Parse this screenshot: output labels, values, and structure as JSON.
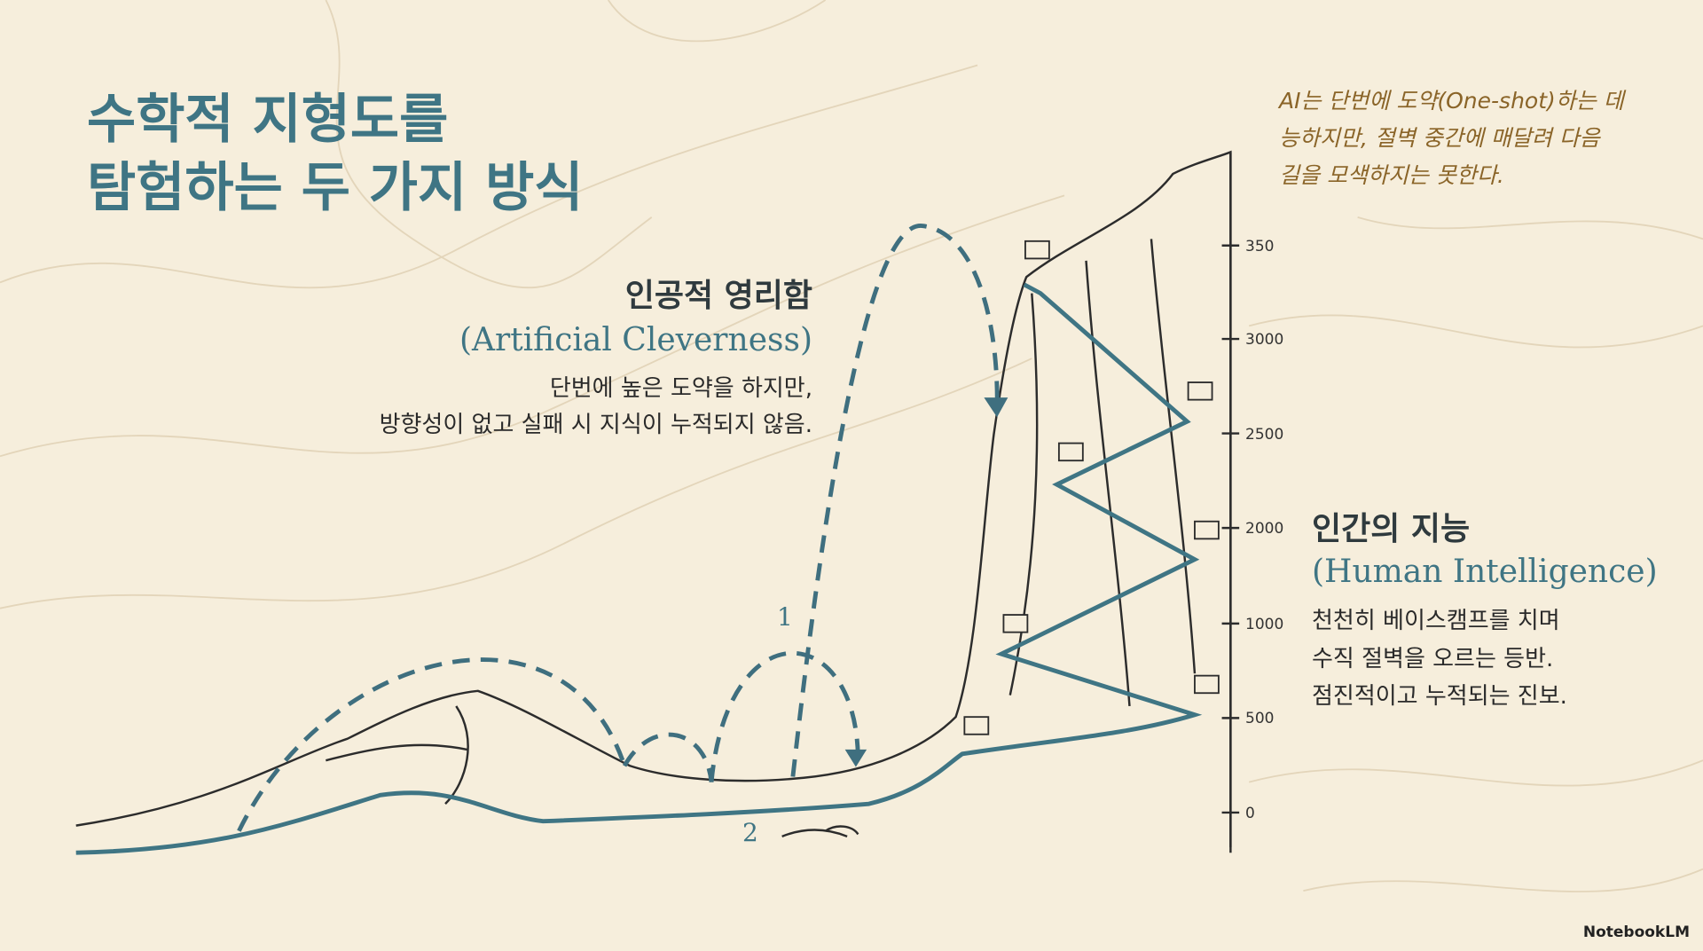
{
  "title": {
    "lines": [
      "수학적 지형도를",
      "탐험하는 두 가지 방식"
    ]
  },
  "annotation": {
    "lines": [
      "AI는 단번에 도약(One-shot)하는 데",
      "능하지만, 절벽 중간에 매달려 다음",
      "길을 모색하지는 못한다."
    ]
  },
  "artificial": {
    "title": "인공적 영리함",
    "subtitle": "(Artificial Cleverness)",
    "body": [
      "단번에 높은 도약을 하지만,",
      "방향성이 없고 실패 시 지식이 누적되지 않음."
    ]
  },
  "human": {
    "title": "인간의 지능",
    "subtitle": "(Human Intelligence)",
    "body": [
      "천천히 베이스캠프를 치며",
      "수직 절벽을 오르는 등반.",
      "점진적이고 누적되는 진보."
    ]
  },
  "scale_labels": [
    "350",
    "3000",
    "2500",
    "2000",
    "1000",
    "500",
    "0"
  ],
  "path_labels": [
    "1",
    "2"
  ],
  "brand": "NotebookLM"
}
